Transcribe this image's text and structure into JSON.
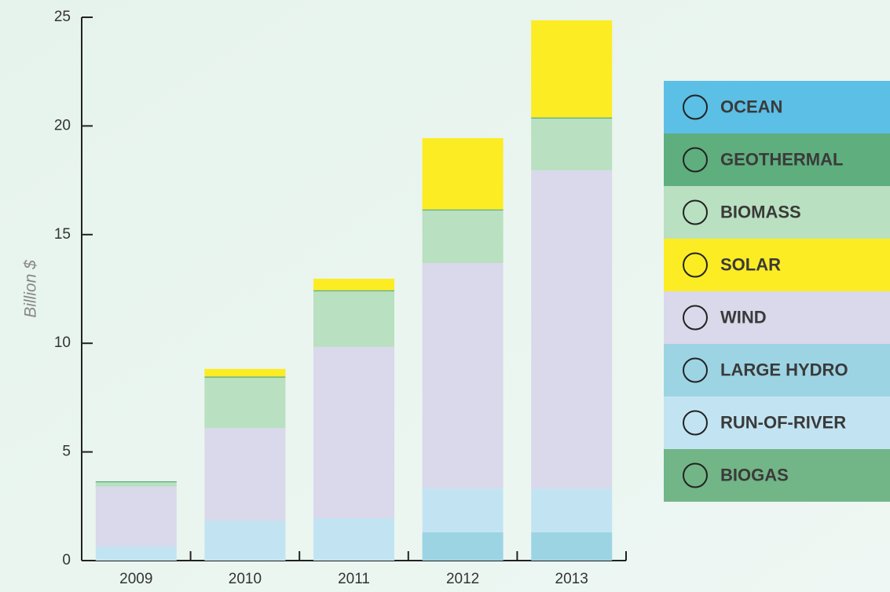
{
  "chart_data": {
    "type": "bar",
    "stacked": true,
    "y_label": "Billion $",
    "categories": [
      "2009",
      "2010",
      "2011",
      "2012",
      "2013"
    ],
    "series": [
      {
        "name": "OCEAN",
        "color": "#5bbfe6",
        "values": [
          0,
          0,
          0,
          0,
          0
        ]
      },
      {
        "name": "GEOTHERMAL",
        "color": "#5fae7e",
        "values": [
          0.05,
          0.05,
          0.05,
          0.05,
          0.05
        ]
      },
      {
        "name": "BIOMASS",
        "color": "#b9e0c0",
        "values": [
          0.2,
          2.32,
          2.56,
          2.42,
          2.38
        ]
      },
      {
        "name": "SOLAR",
        "color": "#fcec23",
        "values": [
          0,
          0.35,
          0.53,
          3.28,
          4.47
        ]
      },
      {
        "name": "WIND",
        "color": "#dad8eb",
        "values": [
          2.75,
          4.26,
          7.88,
          10.37,
          14.64
        ]
      },
      {
        "name": "LARGE HYDRO",
        "color": "#9dd4e4",
        "values": [
          0,
          0,
          0,
          1.3,
          1.3
        ]
      },
      {
        "name": "RUN-OF-RIVER",
        "color": "#c2e4f2",
        "values": [
          0.65,
          1.84,
          1.95,
          2.02,
          2.02
        ]
      },
      {
        "name": "BIOGAS",
        "color": "#72b587",
        "values": [
          0,
          0,
          0,
          0,
          0
        ]
      }
    ],
    "ylim": [
      0,
      25
    ],
    "yticks": [
      0,
      5,
      10,
      15,
      20,
      25
    ],
    "legend": "right"
  }
}
